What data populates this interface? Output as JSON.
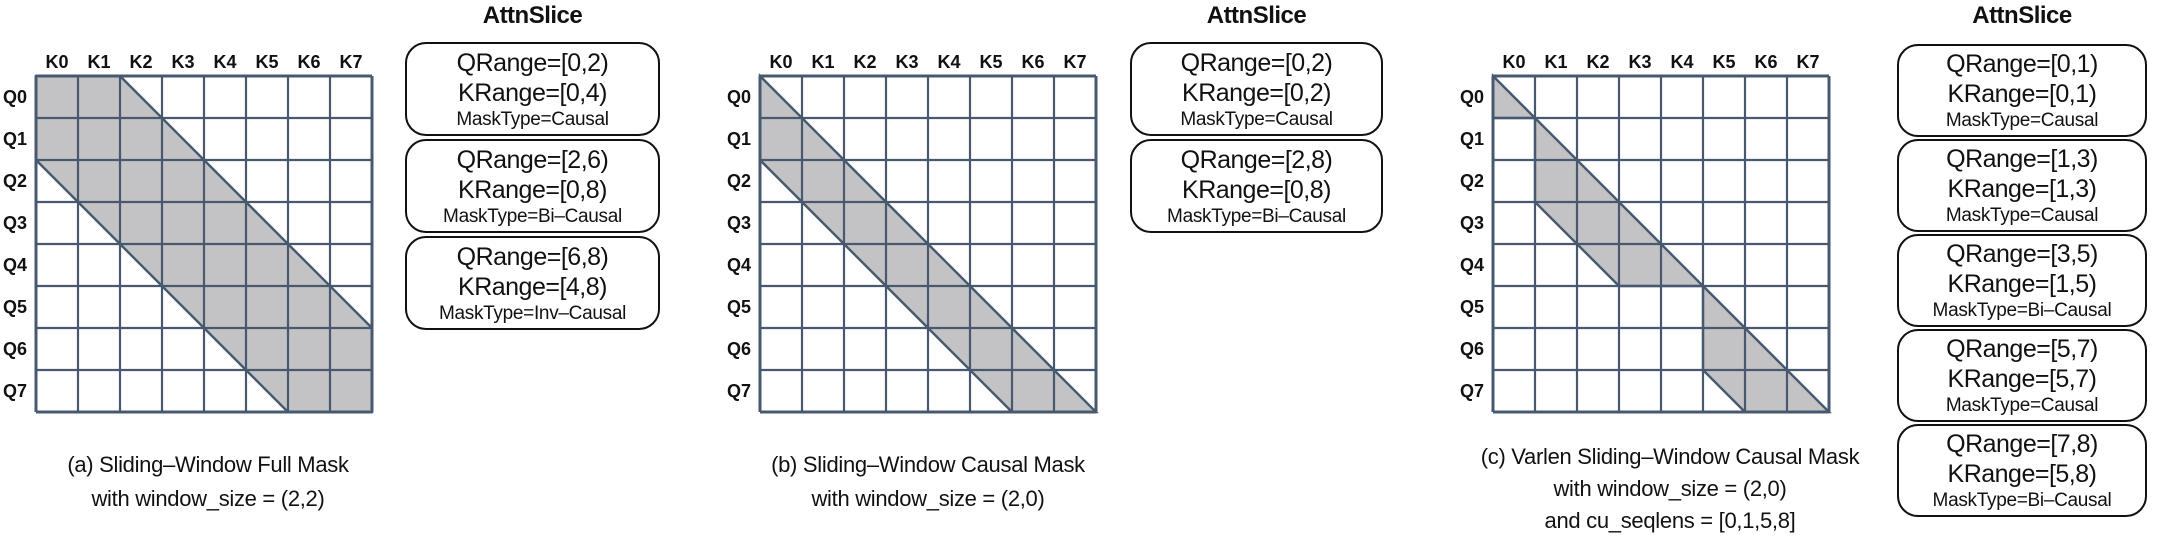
{
  "figure": {
    "grid": {
      "rows": 8,
      "cols": 8
    },
    "colors": {
      "grid_line": "#47586f",
      "mask_fill": "#c3c3c5",
      "box_border": "#111111",
      "text": "#111111"
    },
    "panels": [
      {
        "title": "AttnSlice",
        "k_labels": [
          "K0",
          "K1",
          "K2",
          "K3",
          "K4",
          "K5",
          "K6",
          "K7"
        ],
        "q_labels": [
          "Q0",
          "Q1",
          "Q2",
          "Q3",
          "Q4",
          "Q5",
          "Q6",
          "Q7"
        ],
        "slices": [
          {
            "qrange": "QRange=[0,2)",
            "krange": "KRange=[0,4)",
            "masktype": "MaskType=Causal"
          },
          {
            "qrange": "QRange=[2,6)",
            "krange": "KRange=[0,8)",
            "masktype": "MaskType=Bi–Causal"
          },
          {
            "qrange": "QRange=[6,8)",
            "krange": "KRange=[4,8)",
            "masktype": "MaskType=Inv–Causal"
          }
        ],
        "caption_lines": [
          "(a) Sliding–Window Full Mask",
          "with window_size = (2,2)"
        ],
        "mask_polygons": [
          [
            [
              0,
              0
            ],
            [
              2,
              0
            ],
            [
              8,
              6
            ],
            [
              8,
              8
            ],
            [
              6,
              8
            ],
            [
              0,
              2
            ]
          ]
        ]
      },
      {
        "title": "AttnSlice",
        "k_labels": [
          "K0",
          "K1",
          "K2",
          "K3",
          "K4",
          "K5",
          "K6",
          "K7"
        ],
        "q_labels": [
          "Q0",
          "Q1",
          "Q2",
          "Q3",
          "Q4",
          "Q5",
          "Q6",
          "Q7"
        ],
        "slices": [
          {
            "qrange": "QRange=[0,2)",
            "krange": "KRange=[0,2)",
            "masktype": "MaskType=Causal"
          },
          {
            "qrange": "QRange=[2,8)",
            "krange": "KRange=[0,8)",
            "masktype": "MaskType=Bi–Causal"
          }
        ],
        "caption_lines": [
          "(b) Sliding–Window Causal Mask",
          "with window_size = (2,0)"
        ],
        "mask_polygons": [
          [
            [
              0,
              0
            ],
            [
              8,
              8
            ],
            [
              6,
              8
            ],
            [
              0,
              2
            ]
          ]
        ]
      },
      {
        "title": "AttnSlice",
        "k_labels": [
          "K0",
          "K1",
          "K2",
          "K3",
          "K4",
          "K5",
          "K6",
          "K7"
        ],
        "q_labels": [
          "Q0",
          "Q1",
          "Q2",
          "Q3",
          "Q4",
          "Q5",
          "Q6",
          "Q7"
        ],
        "slices": [
          {
            "qrange": "QRange=[0,1)",
            "krange": "KRange=[0,1)",
            "masktype": "MaskType=Causal"
          },
          {
            "qrange": "QRange=[1,3)",
            "krange": "KRange=[1,3)",
            "masktype": "MaskType=Causal"
          },
          {
            "qrange": "QRange=[3,5)",
            "krange": "KRange=[1,5)",
            "masktype": "MaskType=Bi–Causal"
          },
          {
            "qrange": "QRange=[5,7)",
            "krange": "KRange=[5,7)",
            "masktype": "MaskType=Causal"
          },
          {
            "qrange": "QRange=[7,8)",
            "krange": "KRange=[5,8)",
            "masktype": "MaskType=Bi–Causal"
          }
        ],
        "caption_lines": [
          "(c) Varlen Sliding–Window Causal Mask",
          "with window_size = (2,0)",
          "and cu_seqlens = [0,1,5,8]"
        ],
        "mask_polygons": [
          [
            [
              0,
              0
            ],
            [
              1,
              1
            ],
            [
              0,
              1
            ]
          ],
          [
            [
              1,
              1
            ],
            [
              5,
              5
            ],
            [
              3,
              5
            ],
            [
              1,
              3
            ]
          ],
          [
            [
              5,
              5
            ],
            [
              8,
              8
            ],
            [
              6,
              8
            ],
            [
              5,
              7
            ]
          ]
        ]
      }
    ]
  }
}
